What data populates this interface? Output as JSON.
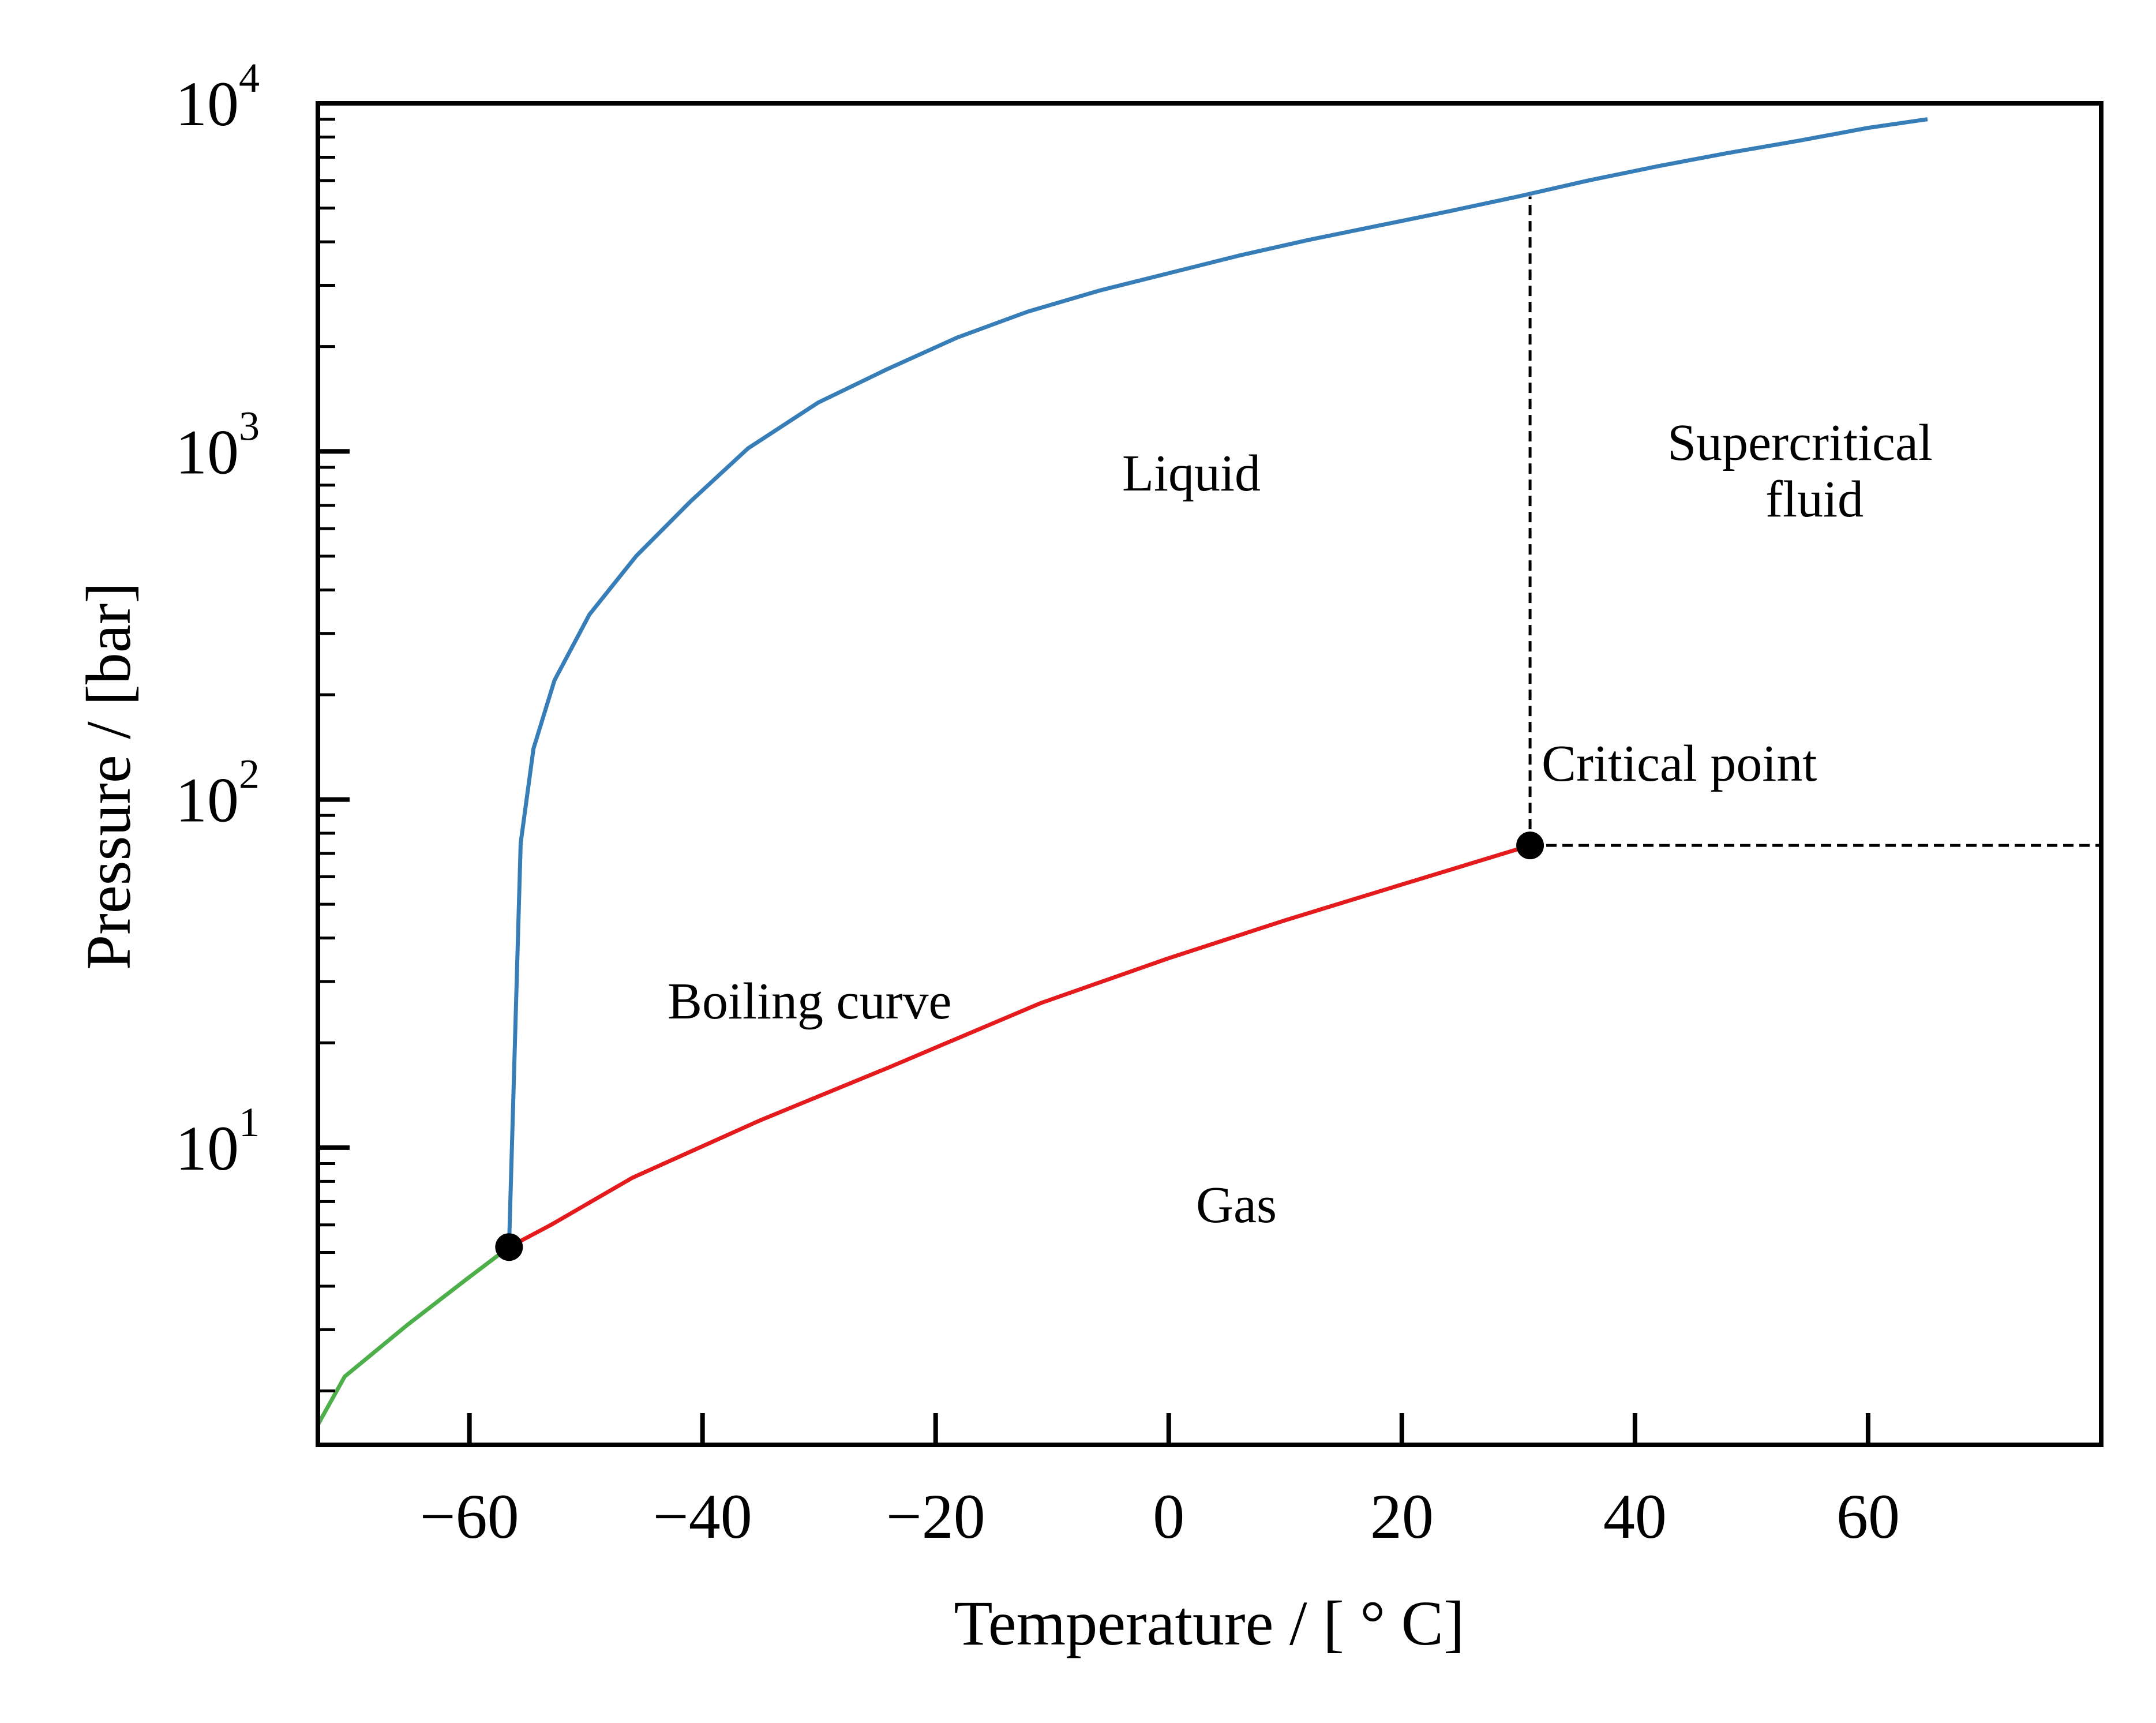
{
  "chart_data": {
    "type": "line",
    "xlabel": "Temperature / [ ° C]",
    "ylabel": "Pressure / [bar]",
    "xlim": [
      -73,
      80
    ],
    "ylim": [
      1.4,
      10000
    ],
    "y_scale": "log",
    "grid": false,
    "x_ticks": [
      -60,
      -40,
      -20,
      0,
      20,
      40,
      60
    ],
    "x_tick_labels": [
      "−60",
      "−40",
      "−20",
      "0",
      "20",
      "40",
      "60"
    ],
    "y_ticks": [
      10,
      100,
      1000,
      10000
    ],
    "y_tick_labels": [
      {
        "base": "10",
        "exp": "1"
      },
      {
        "base": "10",
        "exp": "2"
      },
      {
        "base": "10",
        "exp": "3"
      },
      {
        "base": "10",
        "exp": "4"
      }
    ],
    "series": [
      {
        "color": "#4daf4a",
        "x": [
          -73,
          -70.7,
          -65.3,
          -60.2,
          -56.6
        ],
        "y": [
          1.6,
          2.2,
          3.1,
          4.2,
          5.18
        ]
      },
      {
        "color": "#e41a1c",
        "x": [
          -56.6,
          -53,
          -46,
          -35,
          -24,
          -11,
          0,
          10,
          20,
          31.0
        ],
        "y": [
          5.18,
          6.0,
          8.2,
          12.0,
          17.0,
          26.0,
          35.0,
          45.0,
          57.0,
          73.8
        ]
      },
      {
        "color": "#377eb8",
        "x": [
          -56.6,
          -55.6,
          -54.5,
          -52.7,
          -49.7,
          -45.7,
          -41.0,
          -36.1,
          -30.1,
          -24.2,
          -18.2,
          -12.1,
          -5.9,
          0,
          6.0,
          12.0,
          18.0,
          24.1,
          30.0,
          36.0,
          42.0,
          48.0,
          54.0,
          60.0,
          65.1
        ],
        "y": [
          5.18,
          75,
          140,
          220,
          340,
          500,
          720,
          1020,
          1380,
          1720,
          2120,
          2520,
          2900,
          3250,
          3650,
          4050,
          4450,
          4900,
          5400,
          6000,
          6600,
          7200,
          7800,
          8500,
          9000
        ]
      }
    ],
    "points": [
      {
        "x": -56.6,
        "y": 5.18
      },
      {
        "x": 31.0,
        "y": 73.8
      }
    ],
    "reference_lines": {
      "vertical": {
        "x": 31.0,
        "y_from": 73.8,
        "y_to": 5400
      },
      "horizontal": {
        "y": 73.8,
        "x_from": 31.0,
        "x_to": 80
      }
    },
    "annotations": {
      "liquid": "Liquid",
      "supercritical_line1": "Supercritical",
      "supercritical_line2": "fluid",
      "critical_point": "Critical point",
      "boiling_curve": "Boiling curve",
      "gas": "Gas"
    },
    "annotation_colors": {
      "boiling_curve": "#e41a1c"
    }
  }
}
